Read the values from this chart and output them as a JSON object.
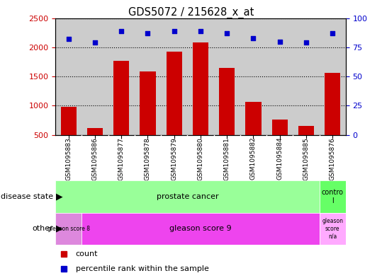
{
  "title": "GDS5072 / 215628_x_at",
  "samples": [
    "GSM1095883",
    "GSM1095886",
    "GSM1095877",
    "GSM1095878",
    "GSM1095879",
    "GSM1095880",
    "GSM1095881",
    "GSM1095882",
    "GSM1095884",
    "GSM1095885",
    "GSM1095876"
  ],
  "counts": [
    980,
    620,
    1770,
    1590,
    1930,
    2080,
    1650,
    1060,
    760,
    650,
    1560
  ],
  "percentile_ranks": [
    82,
    79,
    89,
    87,
    89,
    89,
    87,
    83,
    80,
    79,
    87
  ],
  "ylim_left": [
    500,
    2500
  ],
  "ylim_right": [
    0,
    100
  ],
  "yticks_left": [
    500,
    1000,
    1500,
    2000,
    2500
  ],
  "yticks_right": [
    0,
    25,
    50,
    75,
    100
  ],
  "bar_color": "#cc0000",
  "dot_color": "#0000cc",
  "bg_color": "#cccccc",
  "prostate_cancer_color": "#99ff99",
  "control_color": "#66ff66",
  "gleason8_color": "#dd88dd",
  "gleason9_color": "#ee44ee",
  "gleasonNA_color": "#ffaaff",
  "left_axis_color": "#cc0000",
  "right_axis_color": "#0000cc"
}
